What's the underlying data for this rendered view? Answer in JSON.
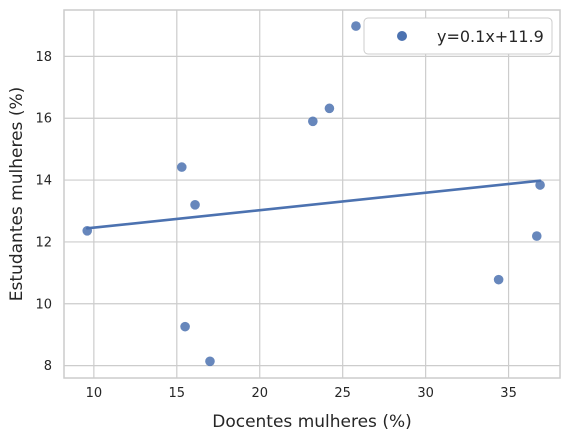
{
  "chart_data": {
    "type": "scatter",
    "title": "",
    "xlabel": "Docentes mulheres (%)",
    "ylabel": "Estudantes mulheres (%)",
    "xlim": [
      8.2,
      38.1
    ],
    "ylim": [
      7.6,
      19.5
    ],
    "xticks": [
      10,
      15,
      20,
      25,
      30,
      35
    ],
    "yticks": [
      8,
      10,
      12,
      14,
      16,
      18
    ],
    "grid": true,
    "legend_position": "top-right",
    "colors": {
      "points": "#4c72b0",
      "line": "#4c72b0",
      "grid": "#cccccc",
      "spine": "#cccccc"
    },
    "series": [
      {
        "name": "y=0.1x+11.9",
        "kind": "scatter",
        "points": [
          {
            "x": 9.6,
            "y": 12.36
          },
          {
            "x": 15.3,
            "y": 14.42
          },
          {
            "x": 15.5,
            "y": 9.26
          },
          {
            "x": 16.1,
            "y": 13.2
          },
          {
            "x": 17.0,
            "y": 8.14
          },
          {
            "x": 23.2,
            "y": 15.9
          },
          {
            "x": 24.2,
            "y": 16.32
          },
          {
            "x": 25.8,
            "y": 18.98
          },
          {
            "x": 34.4,
            "y": 10.78
          },
          {
            "x": 36.7,
            "y": 12.19
          },
          {
            "x": 36.9,
            "y": 13.84
          }
        ]
      },
      {
        "kind": "line",
        "points": [
          {
            "x": 9.6,
            "y": 12.44
          },
          {
            "x": 36.9,
            "y": 13.98
          }
        ]
      }
    ]
  }
}
